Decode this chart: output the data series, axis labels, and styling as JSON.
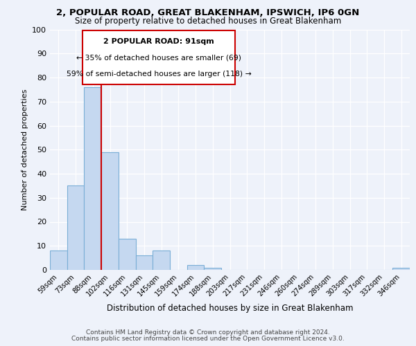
{
  "title": "2, POPULAR ROAD, GREAT BLAKENHAM, IPSWICH, IP6 0GN",
  "subtitle": "Size of property relative to detached houses in Great Blakenham",
  "xlabel": "Distribution of detached houses by size in Great Blakenham",
  "ylabel": "Number of detached properties",
  "bin_labels": [
    "59sqm",
    "73sqm",
    "88sqm",
    "102sqm",
    "116sqm",
    "131sqm",
    "145sqm",
    "159sqm",
    "174sqm",
    "188sqm",
    "203sqm",
    "217sqm",
    "231sqm",
    "246sqm",
    "260sqm",
    "274sqm",
    "289sqm",
    "303sqm",
    "317sqm",
    "332sqm",
    "346sqm"
  ],
  "bar_values": [
    8,
    35,
    76,
    49,
    13,
    6,
    8,
    0,
    2,
    1,
    0,
    0,
    0,
    0,
    0,
    0,
    0,
    0,
    0,
    0,
    1
  ],
  "bar_color": "#c5d8f0",
  "bar_edge_color": "#7aaed6",
  "ylim": [
    0,
    100
  ],
  "yticks": [
    0,
    10,
    20,
    30,
    40,
    50,
    60,
    70,
    80,
    90,
    100
  ],
  "vline_x": 2.5,
  "vline_color": "#cc0000",
  "annotation_title": "2 POPULAR ROAD: 91sqm",
  "annotation_line1": "← 35% of detached houses are smaller (69)",
  "annotation_line2": "59% of semi-detached houses are larger (118) →",
  "annotation_box_color": "#cc0000",
  "footer_line1": "Contains HM Land Registry data © Crown copyright and database right 2024.",
  "footer_line2": "Contains public sector information licensed under the Open Government Licence v3.0.",
  "background_color": "#eef2fa",
  "plot_bg_color": "#eef2fa",
  "grid_color": "#ffffff"
}
